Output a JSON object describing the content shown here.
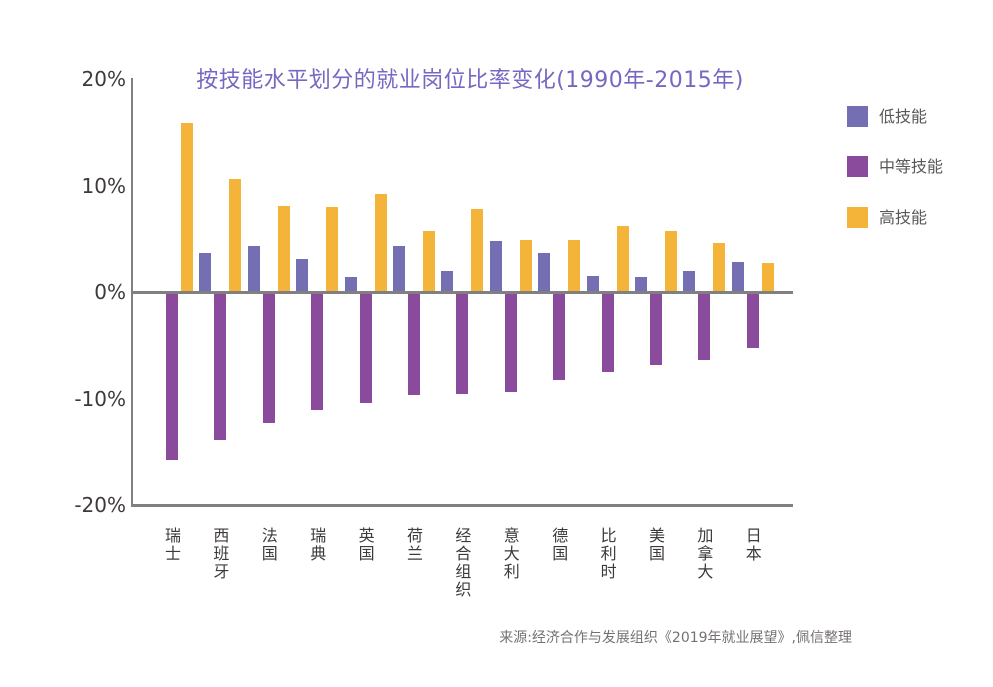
{
  "chart_data": {
    "type": "bar",
    "title": "按技能水平划分的就业岗位比率变化(1990年-2015年)",
    "title_color": "#7668C2",
    "categories": [
      "瑞士",
      "西班牙",
      "法国",
      "瑞典",
      "英国",
      "荷兰",
      "经合组织",
      "意大利",
      "德国",
      "比利时",
      "美国",
      "加拿大",
      "日本"
    ],
    "series": [
      {
        "name": "低技能",
        "color": "#746EB2",
        "values": [
          0,
          3.7,
          4.3,
          3.1,
          1.4,
          4.3,
          2.0,
          4.8,
          3.7,
          1.5,
          1.4,
          2.0,
          2.8
        ]
      },
      {
        "name": "中等技能",
        "color": "#8A4B9D",
        "values": [
          -15.8,
          -13.9,
          -12.3,
          -11.1,
          -10.4,
          -9.7,
          -9.6,
          -9.4,
          -8.3,
          -7.5,
          -6.9,
          -6.4,
          -5.3
        ]
      },
      {
        "name": "高技能",
        "color": "#F4B339",
        "values": [
          15.9,
          10.6,
          8.1,
          8.0,
          9.2,
          5.7,
          7.8,
          4.9,
          4.9,
          6.2,
          5.7,
          4.6,
          2.7
        ]
      }
    ],
    "ylim": [
      -20,
      20
    ],
    "yticks": [
      {
        "value": 20,
        "label": "20%"
      },
      {
        "value": 10,
        "label": "10%"
      },
      {
        "value": 0,
        "label": "0%"
      },
      {
        "value": -10,
        "label": "-10%"
      },
      {
        "value": -20,
        "label": "-20%"
      }
    ],
    "unit": "percent",
    "grid": "zero line and bottom (-20%) line only",
    "legend_position": "top-right",
    "axis_color": "#808080",
    "source": "来源:经济合作与发展组织《2019年就业展望》,佩信整理"
  }
}
